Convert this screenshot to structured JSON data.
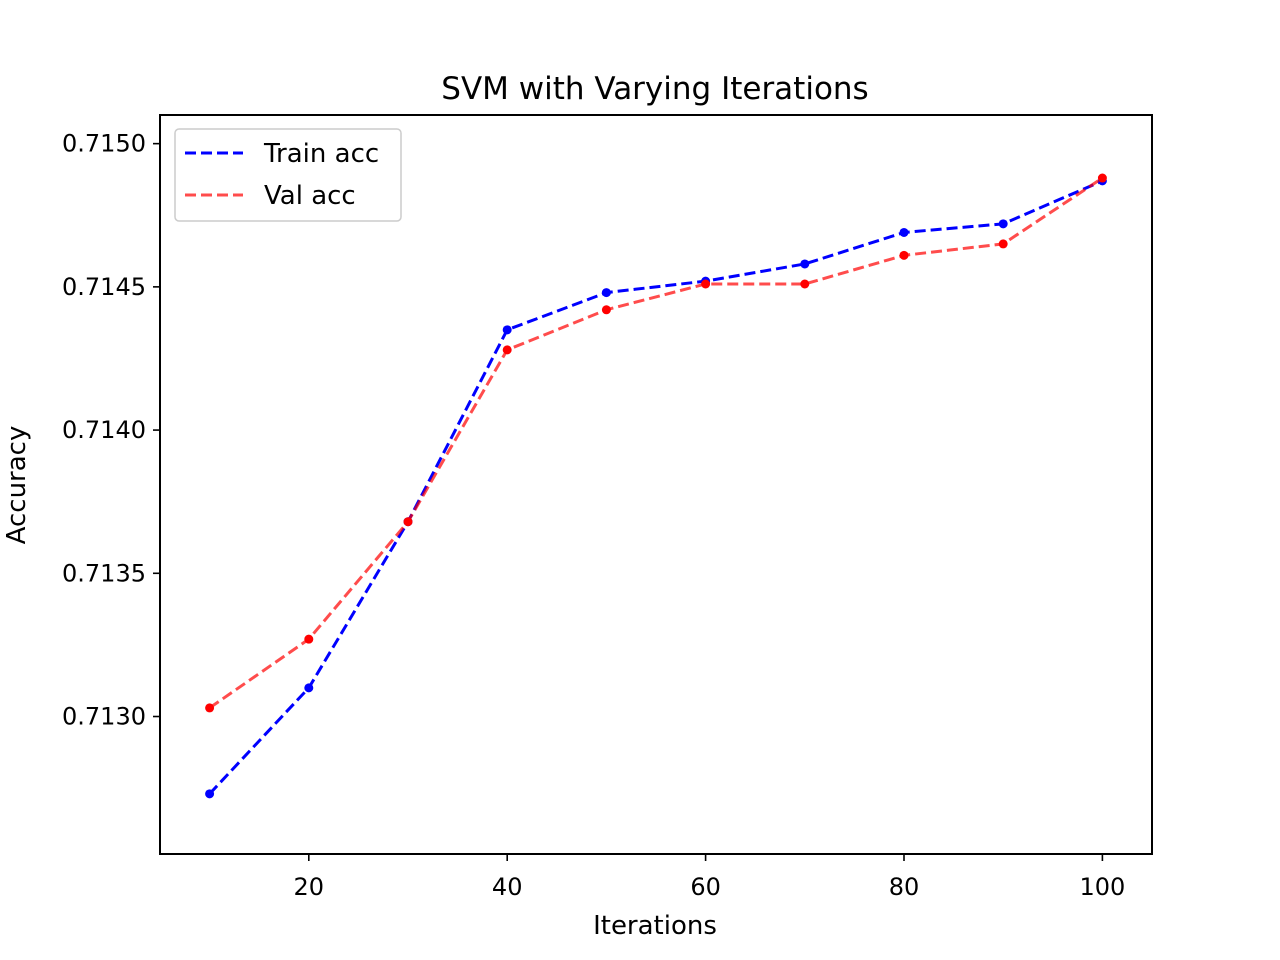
{
  "chart_data": {
    "type": "line",
    "title": "SVM with Varying Iterations",
    "xlabel": "Iterations",
    "ylabel": "Accuracy",
    "x": [
      10,
      20,
      30,
      40,
      50,
      60,
      70,
      80,
      90,
      100
    ],
    "xlim": [
      5,
      105
    ],
    "ylim": [
      0.71252,
      0.7151
    ],
    "xticks": [
      20,
      40,
      60,
      80,
      100
    ],
    "yticks": [
      0.713,
      0.7135,
      0.714,
      0.7145,
      0.715
    ],
    "ytick_labels": [
      "0.7130",
      "0.7135",
      "0.7140",
      "0.7145",
      "0.7150"
    ],
    "grid": false,
    "legend_position": "top-left",
    "series": [
      {
        "name": "Train acc",
        "color": "#0000ff",
        "marker_color": "#0000ff",
        "opacity": 1.0,
        "line_style": "dashed",
        "values": [
          0.71273,
          0.7131,
          0.71368,
          0.71435,
          0.71448,
          0.71452,
          0.71458,
          0.71469,
          0.71472,
          0.71487
        ]
      },
      {
        "name": "Val acc",
        "color": "#ff0000",
        "marker_color": "#ff0000",
        "opacity": 0.7,
        "line_style": "dashed",
        "values": [
          0.71303,
          0.71327,
          0.71368,
          0.71428,
          0.71442,
          0.71451,
          0.71451,
          0.71461,
          0.71465,
          0.71488
        ]
      }
    ]
  }
}
